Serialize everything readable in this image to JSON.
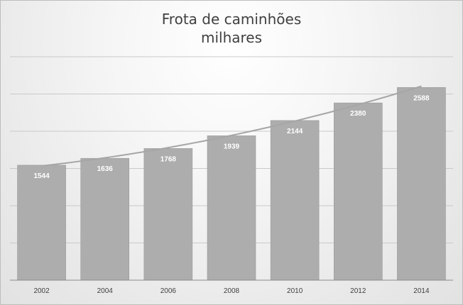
{
  "chart_data": {
    "type": "bar",
    "title": "Frota de caminhões",
    "subtitle": "milhares",
    "xlabel": "",
    "ylabel": "",
    "categories": [
      "2002",
      "2004",
      "2006",
      "2008",
      "2010",
      "2012",
      "2014"
    ],
    "series": [
      {
        "values": [
          1544,
          1636,
          1768,
          1939,
          2144,
          2380,
          2588
        ]
      }
    ],
    "trendline": {
      "type": "polynomial",
      "visible": true
    },
    "ylim": [
      0,
      3000
    ],
    "y_gridline_step": 500,
    "grid": true,
    "legend": "none",
    "data_labels": "inside-top",
    "colors": {
      "bar": "#adadad",
      "bar_edge": "#9a9a9a",
      "trendline": "#a6a6a6",
      "gridline": "#c9c9c9",
      "data_label": "#ffffff",
      "axis_label": "#404040",
      "title": "#404040"
    }
  }
}
